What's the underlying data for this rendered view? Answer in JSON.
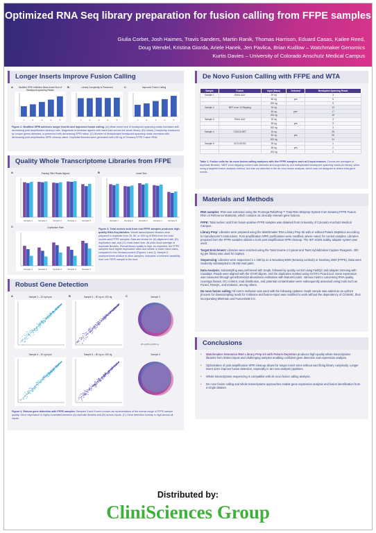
{
  "poster": {
    "title": "Optimized RNA Seq library preparation for fusion calling from FFPE samples",
    "authors_line1": "Giulia Corbet, Josh Haimes, Travis Sanders, Martin Ranik, Thomas Harrison, Eduard Casas, Kailee Reed,",
    "authors_line2": "Doug Wendel, Kristina Giorda, Ariele Hanek, Jen Pavlica, Brian Kudlow – Watchmaker Genomics",
    "authors_line3": "Kurtis Davies – University of Colorado Anschutz Medical Campus"
  },
  "sections": {
    "inserts": {
      "title": "Longer Inserts Improve Fusion Calling",
      "panel_a": "A",
      "panel_b": "B",
      "panel_c": "C",
      "chart_a_title": "Modified SPRI Inhibition Mean Insert Size of Breakpoint-spanning Reads",
      "chart_b_title": "Library Complexity is Preserved",
      "chart_c_title": "Improved Fusion Calling",
      "caption_bold": "Figure 2. Modified SPRI achieves longer inserts and improves fusion calling.",
      "caption_body": " (A) Mean insert size of breakpoint-spanning reads increases with decreasing post amplification cleanup ratio. Magnitude of increase agrees with insert size across the whole library. (B) Library Complexity, measured by unique genes detected, is preserved with decreasing SPRI ratios. (C) Number of deduplicated breakpoint-spanning reads increases with decreasing post amplification SPRI cleanup ratios. Duplicate libraries were generated with 100 ng of Seraseq FFPE Fusion RNA."
    },
    "quality": {
      "title": "Quality Whole Transcriptome Libraries from FFPE",
      "panel_a": "A",
      "panel_b": "B",
      "panel_c": "C",
      "chart_a_title": "Passing Filter Reads Aligned",
      "chart_b_title": "Insert Size",
      "chart_c_title": "Duplication Rate",
      "caption_bold": "Figure 3. Total nucleic acid from real FFPE samples produces high-quality RNA-Seq libraries.",
      "caption_body": " Whole transcriptome libraries were prepared in duplicate from 20, 50, or 200 ng of RNA from five total nucleic acid FFPE samples. Data are shown for (A) alignment rate, (B) duplication rate, and (C) mean insert size. All plots show average of duplicate libraries. Overall library quality is high. As expected, the FFPE samples have higher duplication rates and similar or lower insert sizes, compared to the Seraseq control (Figures 1 and 2). Sample 5 underperforms relative to other samples, indicative of inherent variability from one FFPE sample to the next."
    },
    "gene": {
      "title": "Robust Gene Detection",
      "panel_a": "A",
      "panel_b": "B",
      "panel_c": "C",
      "plot_a1_title": "Sample 3 – 20 ng Input",
      "plot_a2_title": "Sample 5 – 20 ng Input",
      "plot_b1_title": "Sample 3 – 50 ng vs. 200 ng",
      "plot_b2_title": "Sample 5 – 50 ng vs. 200 ng",
      "plot_c1_title": "Sample 3",
      "plot_c2_title": "Sample 5",
      "venn_legend": "20 ng   50 ng   200 ng",
      "caption_bold": "Figure 4. Robust gene detection with FFPE samples.",
      "caption_body": " Samples 3 and 5 were chosen as representative of the normal range of FFPE sample quality. Gene expression is highly correlated between (A) replicate libraries and (B) across inputs. (C) Gene detection overlap is high across all inputs."
    },
    "denovo": {
      "title": "De Novo Fusion Calling with FFPE and WTA",
      "table_headers": [
        "Sample",
        "Fusion",
        "Input (Mass)",
        "Detected",
        "Breakpoint-Spanning Reads"
      ],
      "caption_bold": "Table 1. Fusion calls for de novo fusion calling analyses with five FFPE samples each at 3 input masses.",
      "caption_body": " Counts are averages of duplicate libraries. *MET exon skipping content was detected and supported by ≥10 deduplicated breakpoint spanning reads per library, when using a targeted fusion analysis method, but was not detected in the de novo fusion analysis, which was not designed to detect intra-gene events."
    },
    "methods": {
      "title": "Materials and Methods",
      "p1_bold": "RNA samples:",
      "p1": " RNA was extracted using the Promega ReliaPrep™ Total RNA Miniprep System from Seraseq FFPE Fusion RNA v4 Reference Materials, which contains 16 clinically relevant gene fusions.",
      "p2_bold": "FFPE:",
      "p2": " Total nucleic acid from fusion-positive FFPE samples was obtained from University of Colorado Anschutz Medical Campus.",
      "p3_bold": "Library Prep:",
      "p3": " Libraries were prepared using the Watchmaker RNA Library Prep Kit with or without Polaris Depletion according to manufacturer's instructions. Post amplification SPRI purifications were modified, where noted, for control samples. Libraries prepared from the FFPE samples utilized a 0.8X post amplification SPRI cleanup. The IDT xGEN stubby adapter system was used.",
      "p4_bold": "Target Enrichment:",
      "p4": " Libraries were enriched using the Twist Exome 2.0 panel and Twist Hybridization Capture Reagents. 200 ng per library was used for capture.",
      "p5_bold": "Sequencing:",
      "p5": " Libraries were sequenced 2 x 150 bp on a NovaSeq 6000 (Seraseq controls) or NextSeq 2000 (FFPE). Data were randomly subsampled to 28.5M read pairs.",
      "p6_bold": "Data Analysis:",
      "p6": " Subsampling was performed with Seqtk, followed by quality control using FastQC and adapter trimming with Cutadapt. Reads were aligned with the STAR aligner, and the duplicates marked using GATK's Picard tool. Gene expression was measured through gene/transcript abundance estimation with featureCounts. Various metrics concerning RNA quality, coverage biases, GC content, read distribution, and potential contamination were subsequently assessed using tools such as Picard, RSeQC, and Kraken2, among others.",
      "p7_bold": "De novo fusion calling:",
      "p7": " Nf-core's rnafusion was used with the following updates: Seqtk sample was added as an upfront process for downsampling reads for rnafusion and fusion-report was modified to work without the dependency of COSMIC, thus incorporating Mitelman and FusionGDB 2.0."
    },
    "conclusions": {
      "title": "Conclusions",
      "b1_hl": "Watchmaker Genomics RNA Library Prep Kit with Polaris Depletion",
      "b1": " produces high-quality whole transcriptome libraries from limited inputs and challenging samples enabling confident gene detection and expression analysis.",
      "b2": "Optimization of post amplification SPRI cleanup allows for longer insert sizes without sacrificing library complexity. Longer insert sizes improve fusion detection, especially in de novo analysis pipelines.",
      "b3": "Whole transcriptome sequencing is compatible with de novo fusion calling analysis.",
      "b4": "De novo fusion calling and whole transcriptome approaches enable gene expression analysis and fusion identification from a single dataset."
    }
  },
  "table_rows": [
    {
      "sample": "Sample 1",
      "fusion": "EML4-ALK",
      "input": "20 ng",
      "detected": "",
      "reads": "3"
    },
    {
      "sample": "",
      "fusion": "",
      "input": "50 ng",
      "detected": "yes",
      "reads": "5"
    },
    {
      "sample": "",
      "fusion": "",
      "input": "200 ng",
      "detected": "",
      "reads": "9"
    },
    {
      "sample": "Sample 2",
      "fusion": "MET exon 14 Skipping",
      "input": "20 ng",
      "detected": "",
      "reads": "13"
    },
    {
      "sample": "",
      "fusion": "",
      "input": "50 ng",
      "detected": "yes*",
      "reads": "17"
    },
    {
      "sample": "",
      "fusion": "",
      "input": "200 ng",
      "detected": "",
      "reads": "18"
    },
    {
      "sample": "Sample 3",
      "fusion": "EML4-ALK",
      "input": "20 ng",
      "detected": "",
      "reads": "3"
    },
    {
      "sample": "",
      "fusion": "",
      "input": "50 ng",
      "detected": "yes",
      "reads": "3"
    },
    {
      "sample": "",
      "fusion": "",
      "input": "200 ng",
      "detected": "",
      "reads": "3"
    },
    {
      "sample": "Sample 4",
      "fusion": "CCDC6-RET",
      "input": "20 ng",
      "detected": "",
      "reads": "28"
    },
    {
      "sample": "",
      "fusion": "",
      "input": "50 ng",
      "detected": "yes",
      "reads": "28"
    },
    {
      "sample": "",
      "fusion": "",
      "input": "200 ng",
      "detected": "",
      "reads": "24"
    },
    {
      "sample": "Sample 5",
      "fusion": "CD74-ROS1",
      "input": "20 ng",
      "detected": "",
      "reads": "1"
    },
    {
      "sample": "",
      "fusion": "",
      "input": "50 ng",
      "detected": "yes",
      "reads": "2"
    },
    {
      "sample": "",
      "fusion": "",
      "input": "200 ng",
      "detected": "",
      "reads": "2"
    }
  ],
  "chart_data": [
    {
      "type": "bar",
      "categories": [
        "1",
        "2",
        "3",
        "4",
        "5"
      ],
      "values": [
        2.2,
        2.6,
        3.1,
        3.6,
        4.3
      ],
      "ylim": [
        0,
        5
      ],
      "title": "Modified SPRI Inhibition Mean Insert Size of Breakpoint-spanning Reads"
    },
    {
      "type": "bar",
      "categories": [
        "1",
        "2",
        "3",
        "4",
        "5"
      ],
      "values": [
        3.9,
        3.9,
        4.0,
        3.95,
        4.0
      ],
      "ylim": [
        0,
        5
      ],
      "title": "Library Complexity is Preserved"
    },
    {
      "type": "bar",
      "categories": [
        "1",
        "2",
        "3",
        "4",
        "5"
      ],
      "values": [
        2.5,
        2.8,
        3.3,
        3.7,
        4.4
      ],
      "ylim": [
        0,
        5
      ],
      "title": "Improved Fusion Calling"
    },
    {
      "type": "bar",
      "categories": [
        "Sample 1",
        "Sample 2",
        "Sample 3",
        "Sample 4",
        "Sample 5"
      ],
      "series": [
        {
          "values": [
            90,
            91,
            89,
            92,
            85
          ]
        },
        {
          "values": [
            88,
            90,
            88,
            91,
            80
          ]
        },
        {
          "values": [
            91,
            92,
            90,
            93,
            86
          ]
        }
      ],
      "ylim": [
        0,
        100
      ],
      "title": "Passing Filter Reads Aligned"
    },
    {
      "type": "bar",
      "categories": [
        "Sample 1",
        "Sample 2",
        "Sample 3",
        "Sample 4",
        "Sample 5"
      ],
      "series": [
        {
          "values": [
            170,
            160,
            175,
            165,
            130
          ]
        },
        {
          "values": [
            165,
            158,
            168,
            162,
            125
          ]
        },
        {
          "values": [
            172,
            163,
            174,
            168,
            132
          ]
        }
      ],
      "ylim": [
        0,
        200
      ],
      "title": "Insert Size"
    },
    {
      "type": "bar",
      "categories": [
        "Sample 1",
        "Sample 2",
        "Sample 3",
        "Sample 4",
        "Sample 5"
      ],
      "series": [
        {
          "values": [
            60,
            55,
            70,
            58,
            75
          ]
        },
        {
          "values": [
            50,
            45,
            62,
            48,
            68
          ]
        },
        {
          "values": [
            30,
            28,
            40,
            30,
            52
          ]
        }
      ],
      "ylim": [
        0,
        100
      ],
      "title": "Duplication Rate"
    }
  ],
  "colors": {
    "bar_primary": "#3a5fb8",
    "bar_secondary": "#7a4aa8",
    "bar_tertiary": "#3fbbe5",
    "scatter_cyan": "#4cb9e0",
    "scatter_purple": "#6b55c2"
  },
  "footer": {
    "distributed": "Distributed by:",
    "brand": "CliniSciences Group"
  }
}
